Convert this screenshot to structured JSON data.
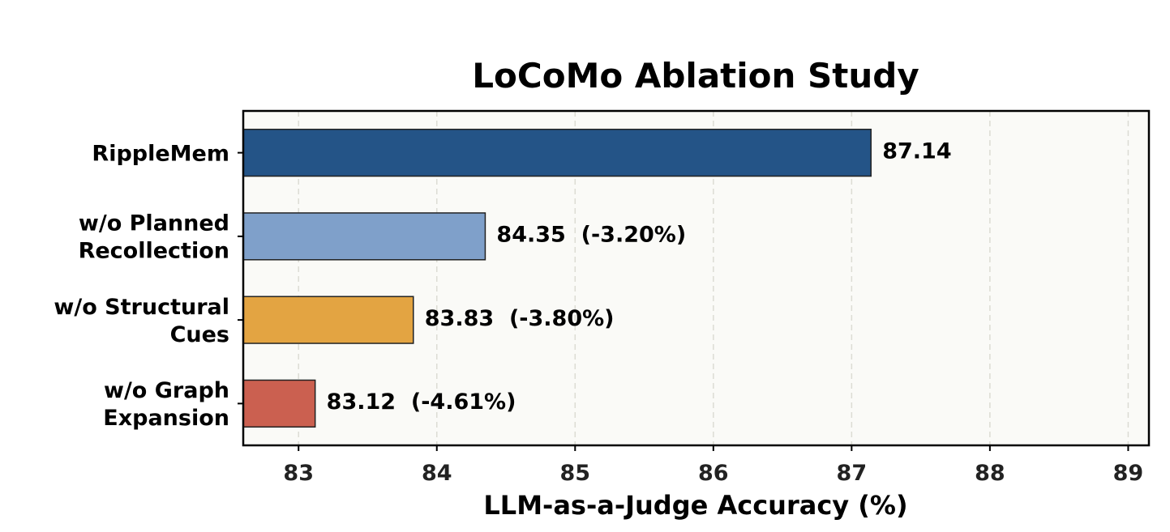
{
  "chart_data": {
    "type": "bar",
    "orientation": "horizontal",
    "title": "LoCoMo Ablation Study",
    "xlabel": "LLM-as-a-Judge Accuracy (%)",
    "ylabel": "",
    "xlim": [
      82.6,
      89.15
    ],
    "xticks": [
      83,
      84,
      85,
      86,
      87,
      88,
      89
    ],
    "categories": [
      [
        "RippleMem"
      ],
      [
        "w/o Planned",
        "Recollection"
      ],
      [
        "w/o Structural",
        "Cues"
      ],
      [
        "w/o Graph",
        "Expansion"
      ]
    ],
    "values": [
      87.14,
      84.35,
      83.83,
      83.12
    ],
    "value_labels": [
      "87.14",
      "84.35  (-3.20%)",
      "83.83  (-3.80%)",
      "83.12  (-4.61%)"
    ],
    "colors": [
      "#245487",
      "#7fa0ca",
      "#e3a442",
      "#cb6050"
    ],
    "grid": "vertical dashed",
    "plot_background": "#fafaf7"
  }
}
